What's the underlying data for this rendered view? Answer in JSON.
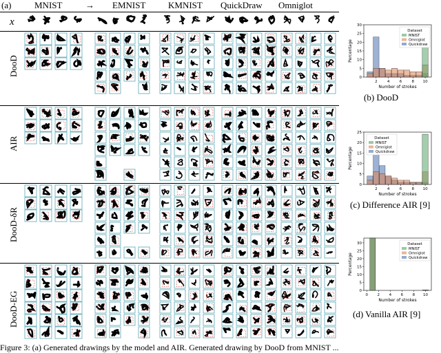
{
  "panel_label": "(a)",
  "headers": {
    "mnist": "MNIST",
    "arrow": "→",
    "emnist": "EMNIST",
    "kmnist": "KMNIST",
    "quickdraw": "QuickDraw",
    "omniglot": "Omniglot"
  },
  "x_row_label": "x",
  "rows": [
    {
      "label": "DooD"
    },
    {
      "label": "AIR"
    },
    {
      "label": "DooD-δR"
    },
    {
      "label": "DooD-EG"
    }
  ],
  "mnist_digits": {
    "x": [
      "0",
      "1",
      "7",
      "4"
    ],
    "dood": [
      [
        "0",
        "1",
        "7",
        "1"
      ],
      [
        "",
        "",
        "7",
        "4"
      ]
    ],
    "air": [
      [
        "0",
        "1",
        "7",
        "1"
      ],
      [
        "",
        "0",
        "7",
        "4"
      ]
    ],
    "dood_dr": [
      [
        "0",
        "1",
        "7",
        "1"
      ],
      [
        "0",
        "",
        "7",
        "4"
      ],
      [
        "",
        "",
        "7",
        ""
      ]
    ]
  },
  "caption_fragment": "Figure 3: (a) Generated drawings by the model and AIR. Generated drawing by DooD from MNIST ...",
  "charts": [
    {
      "caption": "(b) DooD",
      "legend_title": "Dataset",
      "ylabel": "Percentage",
      "xlabel": "Number of strokes",
      "legend_items": [
        "MNIST",
        "Omniglot",
        "Quickdraw"
      ],
      "colors": [
        "#55a868",
        "#dd8452",
        "#4c72b0"
      ]
    },
    {
      "caption": "(c) Difference AIR [9]",
      "legend_title": "Dataset",
      "ylabel": "Percentage",
      "xlabel": "Number of strokes",
      "legend_items": [
        "MNIST",
        "Omniglot",
        "Quickdraw"
      ],
      "colors": [
        "#55a868",
        "#dd8452",
        "#4c72b0"
      ]
    },
    {
      "caption": "(d) Vanilla AIR [9]",
      "legend_title": "Dataset",
      "ylabel": "Percentage",
      "xlabel": "Number of strokes",
      "legend_items": [
        "MNIST",
        "Omniglot",
        "Quickdraw"
      ],
      "colors": [
        "#55a868",
        "#dd8452",
        "#4c72b0"
      ]
    }
  ],
  "chart_data": [
    {
      "type": "bar",
      "title": "",
      "xlabel": "Number of strokes",
      "ylabel": "Percentage",
      "xticks": [
        2,
        4,
        6,
        8,
        10
      ],
      "yticks": [
        0,
        5,
        10,
        15,
        20,
        25,
        30
      ],
      "ylim": [
        0,
        30
      ],
      "xlim": [
        0,
        11
      ],
      "legend_title": "Dataset",
      "legend_placement": "top-right",
      "x": [
        1,
        2,
        3,
        4,
        5,
        6,
        7,
        8,
        9,
        10
      ],
      "series": [
        {
          "name": "MNIST",
          "values": [
            0,
            0,
            0,
            0,
            0,
            0,
            0,
            0,
            0,
            21
          ]
        },
        {
          "name": "Omniglot",
          "values": [
            2,
            5,
            5,
            4,
            5,
            4,
            4,
            3,
            3,
            7
          ]
        },
        {
          "name": "Quickdraw",
          "values": [
            3,
            23,
            5,
            2,
            2,
            2,
            1,
            1,
            1,
            2
          ]
        }
      ]
    },
    {
      "type": "bar",
      "title": "",
      "xlabel": "Number of strokes",
      "ylabel": "Percentage",
      "xticks": [
        2,
        4,
        6,
        8,
        10
      ],
      "yticks": [
        0,
        5,
        10,
        15,
        20,
        25
      ],
      "ylim": [
        0,
        25
      ],
      "xlim": [
        0,
        11
      ],
      "legend_title": "Dataset",
      "legend_placement": "top-left",
      "x": [
        1,
        2,
        3,
        4,
        5,
        6,
        7,
        8,
        9,
        10
      ],
      "series": [
        {
          "name": "MNIST",
          "values": [
            0,
            0,
            0,
            0,
            0,
            0,
            0,
            0,
            0,
            24
          ]
        },
        {
          "name": "Omniglot",
          "values": [
            2,
            6,
            5,
            4,
            3,
            2,
            2,
            1,
            1,
            6
          ]
        },
        {
          "name": "Quickdraw",
          "values": [
            4,
            20,
            9,
            4,
            2,
            1,
            1,
            1,
            1,
            1
          ]
        }
      ]
    },
    {
      "type": "bar",
      "title": "",
      "xlabel": "Number of strokes",
      "ylabel": "Percentage",
      "xticks": [
        0,
        2,
        4,
        6,
        8,
        10
      ],
      "yticks": [
        0,
        5,
        10,
        15,
        20,
        25,
        30
      ],
      "ylim": [
        0,
        33
      ],
      "xlim": [
        -0.5,
        11
      ],
      "legend_title": "Dataset",
      "legend_placement": "top-right",
      "x": [
        1,
        10
      ],
      "series": [
        {
          "name": "MNIST",
          "values": [
            33,
            0.3
          ]
        },
        {
          "name": "Omniglot",
          "values": [
            33,
            0.3
          ]
        },
        {
          "name": "Quickdraw",
          "values": [
            33,
            0.3
          ]
        }
      ]
    }
  ]
}
